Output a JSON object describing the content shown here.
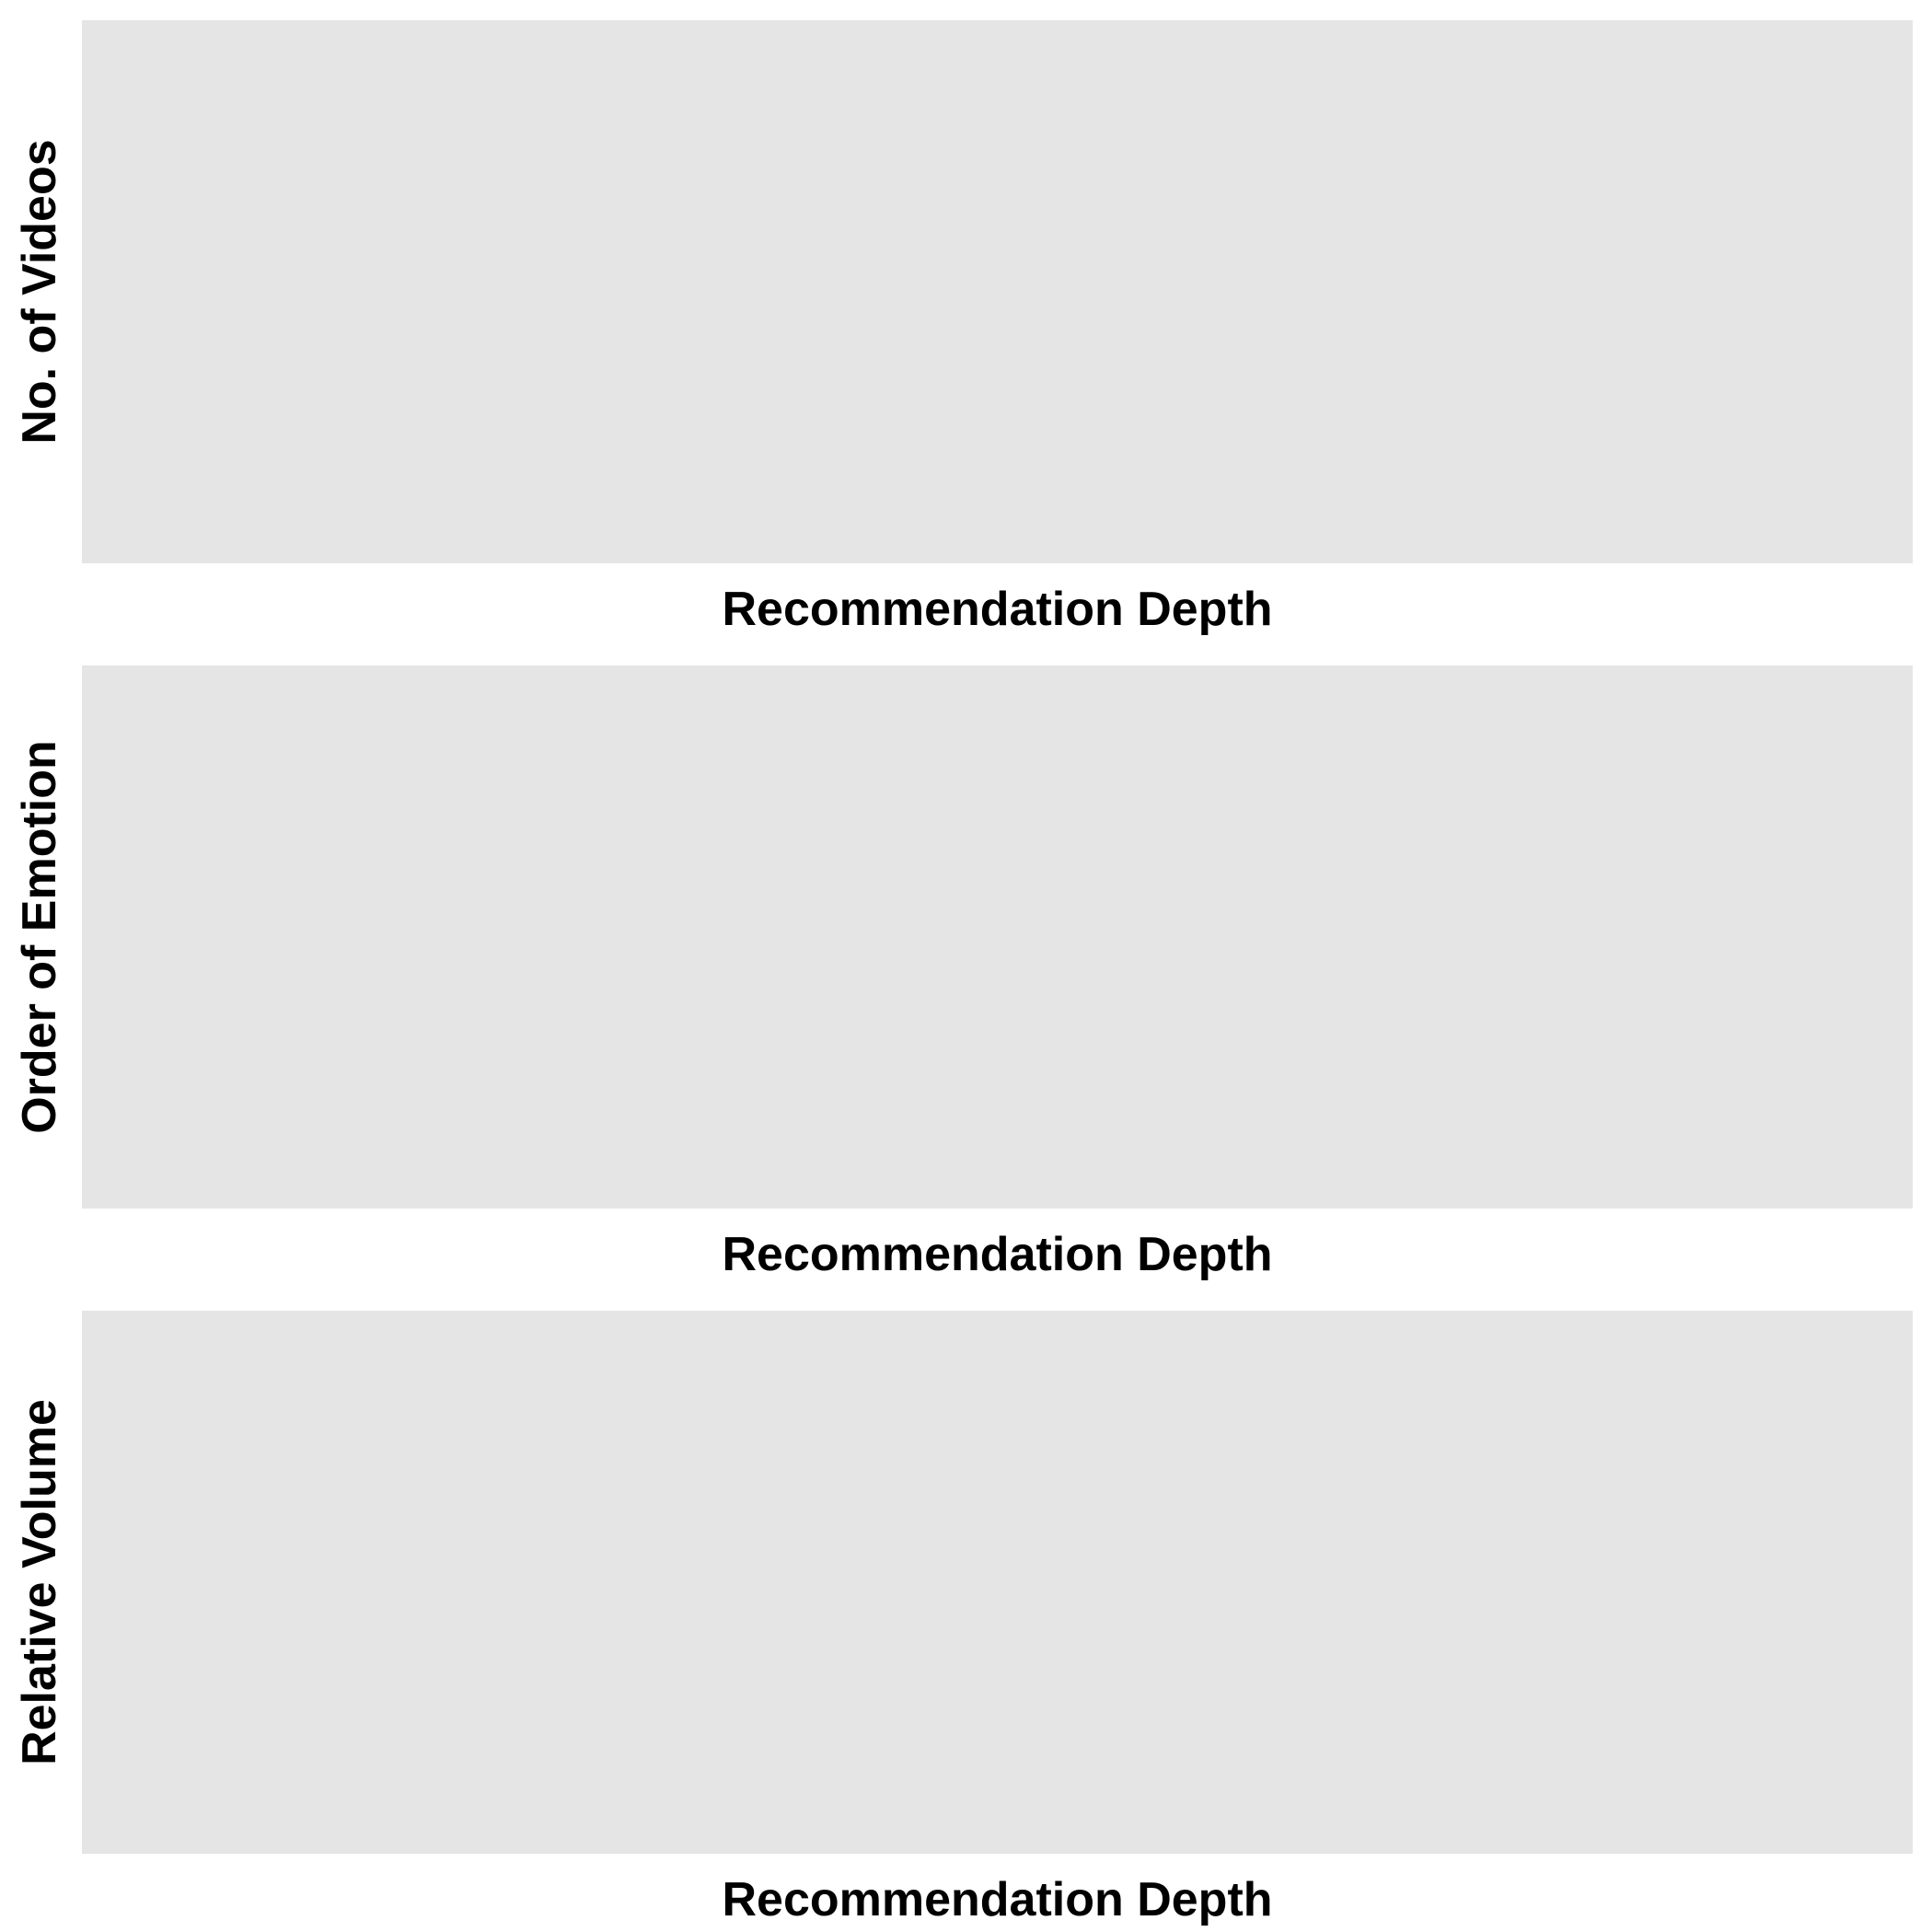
{
  "chart_data": [
    {
      "type": "line",
      "title": "",
      "xlabel": "Recommendation Depth",
      "ylabel": "No. of Videos",
      "series": [],
      "grid": false,
      "panel_background": "#e5e5e5"
    },
    {
      "type": "line",
      "title": "",
      "xlabel": "Recommendation Depth",
      "ylabel": "Order of Emotion",
      "series": [],
      "grid": false,
      "panel_background": "#e5e5e5"
    },
    {
      "type": "line",
      "title": "",
      "xlabel": "Recommendation Depth",
      "ylabel": "Relative Volume",
      "series": [],
      "grid": false,
      "panel_background": "#e5e5e5"
    }
  ]
}
